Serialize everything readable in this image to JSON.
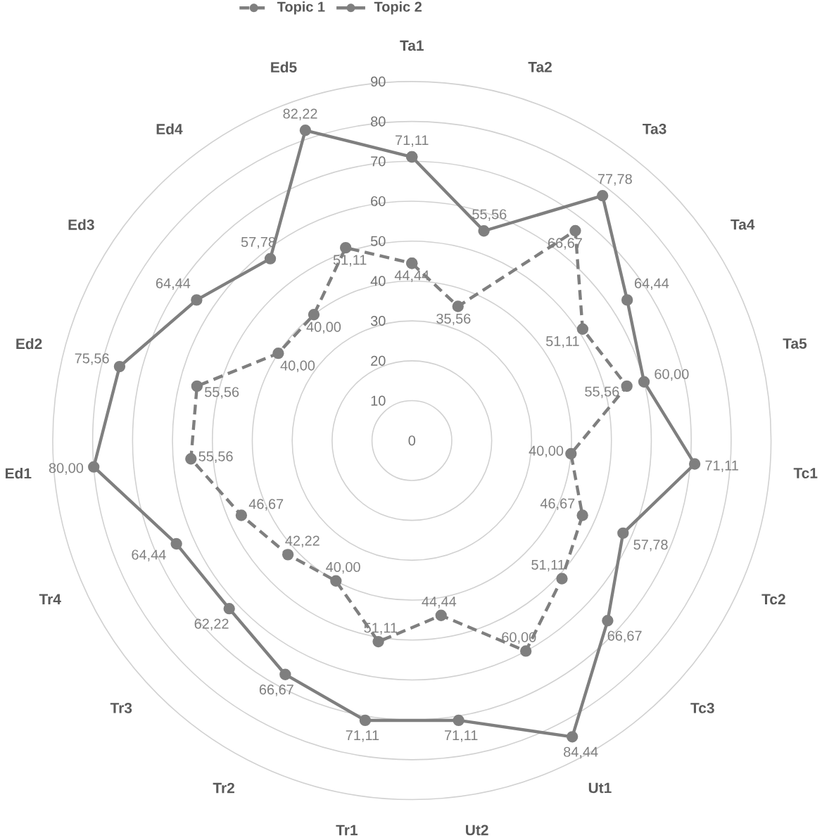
{
  "chart_data": {
    "type": "radar",
    "categories": [
      "Ta1",
      "Ta2",
      "Ta3",
      "Ta4",
      "Ta5",
      "Tc1",
      "Tc2",
      "Tc3",
      "Ut1",
      "Ut2",
      "Tr1",
      "Tr2",
      "Tr3",
      "Tr4",
      "Ed1",
      "Ed2",
      "Ed3",
      "Ed4",
      "Ed5"
    ],
    "ylim": [
      0,
      90
    ],
    "yticks": [
      0,
      10,
      20,
      30,
      40,
      50,
      60,
      70,
      80,
      90
    ],
    "grid": true,
    "legend": "top",
    "marker": "circle",
    "series": [
      {
        "name": "Topic 1",
        "color": "#7f7f7f",
        "line_style": "dashed",
        "values": [
          44.44,
          35.56,
          66.67,
          51.11,
          55.56,
          40.0,
          46.67,
          51.11,
          60.0,
          44.44,
          51.11,
          40.0,
          42.22,
          46.67,
          55.56,
          55.56,
          40.0,
          40.0,
          51.11
        ],
        "value_labels": [
          "44,44",
          "35,56",
          "66,67",
          "51,11",
          "55,56",
          "40,00",
          "46,67",
          "51,11",
          "60,00",
          "44,44",
          "51,11",
          "40,00",
          "42,22",
          "46,67",
          "55,56",
          "55,56",
          "40,00",
          "40,00",
          "51,11"
        ]
      },
      {
        "name": "Topic 2",
        "color": "#7f7f7f",
        "line_style": "solid",
        "values": [
          71.11,
          55.56,
          77.78,
          64.44,
          60.0,
          71.11,
          57.78,
          66.67,
          84.44,
          71.11,
          71.11,
          66.67,
          62.22,
          64.44,
          80.0,
          75.56,
          64.44,
          57.78,
          82.22
        ],
        "value_labels": [
          "71,11",
          "55,56",
          "77,78",
          "64,44",
          "60,00",
          "71,11",
          "57,78",
          "66,67",
          "84,44",
          "71,11",
          "71,11",
          "66,67",
          "62,22",
          "64,44",
          "80,00",
          "75,56",
          "64,44",
          "57,78",
          "82,22"
        ]
      }
    ]
  }
}
